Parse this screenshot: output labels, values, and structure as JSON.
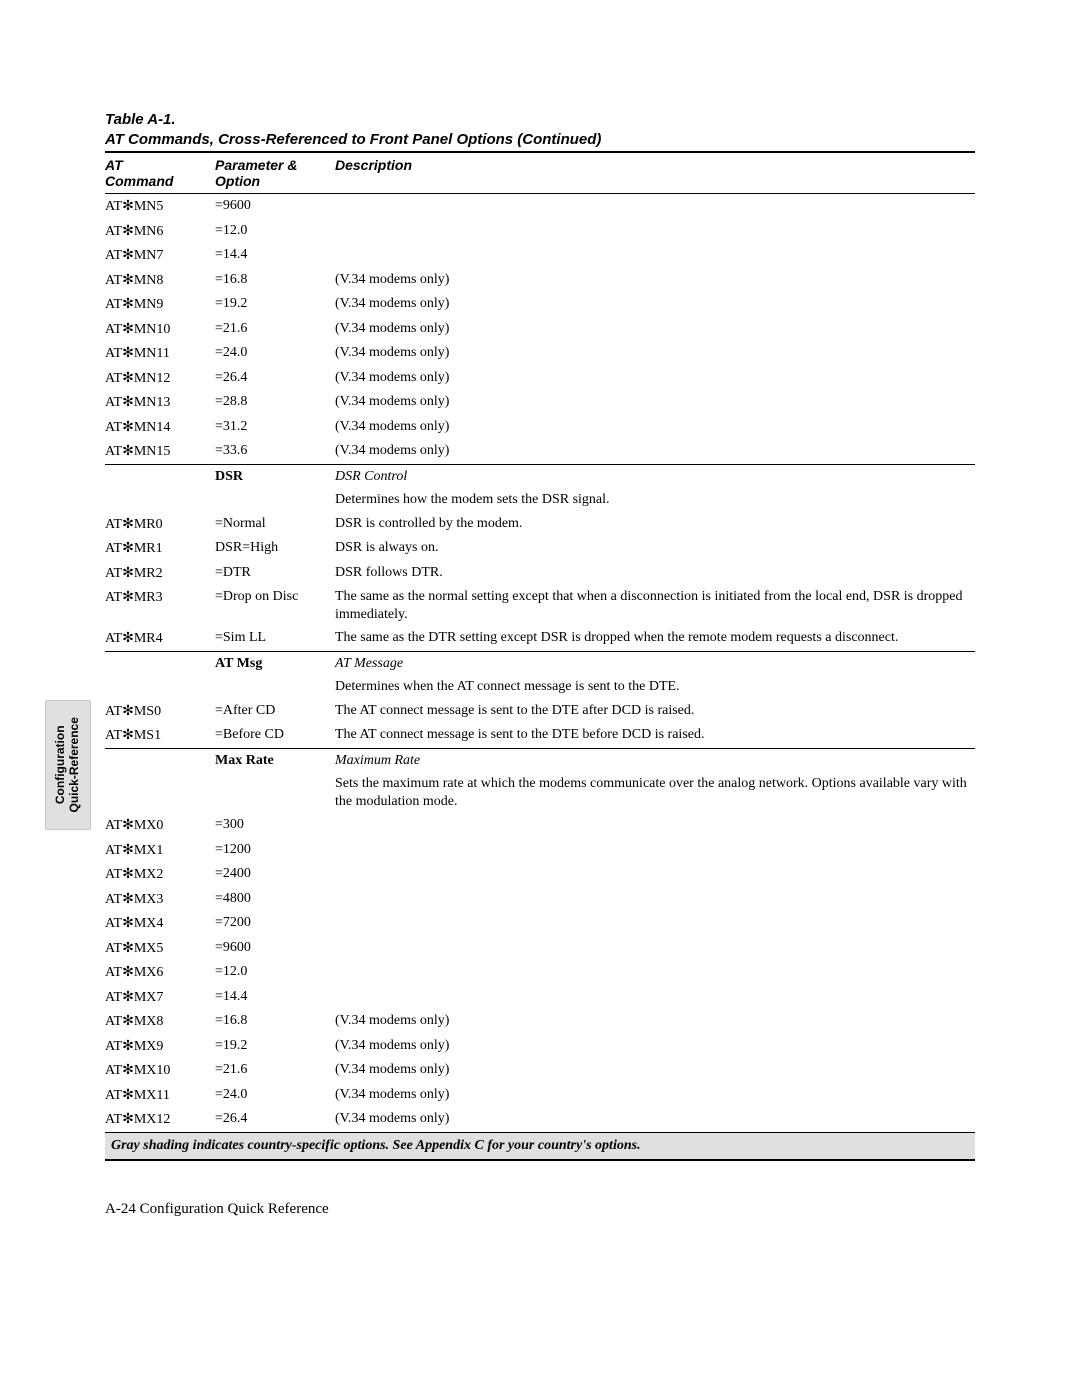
{
  "sideTab": {
    "line1": "Configuration",
    "line2": "Quick-Reference"
  },
  "caption": {
    "line1": "Table A-1.",
    "line2": "AT Commands, Cross-Referenced to Front Panel Options (Continued)"
  },
  "headers": {
    "cmd": "AT Command",
    "param": "Parameter & Option",
    "desc": "Description"
  },
  "symbol": "✻",
  "rows": [
    {
      "type": "data",
      "cmd_prefix": "AT",
      "cmd_suffix": "MN5",
      "param": "=9600",
      "desc": ""
    },
    {
      "type": "data",
      "cmd_prefix": "AT",
      "cmd_suffix": "MN6",
      "param": "=12.0",
      "desc": ""
    },
    {
      "type": "data",
      "cmd_prefix": "AT",
      "cmd_suffix": "MN7",
      "param": "=14.4",
      "desc": ""
    },
    {
      "type": "data",
      "cmd_prefix": "AT",
      "cmd_suffix": "MN8",
      "param": "=16.8",
      "desc": "(V.34 modems only)"
    },
    {
      "type": "data",
      "cmd_prefix": "AT",
      "cmd_suffix": "MN9",
      "param": "=19.2",
      "desc": "(V.34 modems only)"
    },
    {
      "type": "data",
      "cmd_prefix": "AT",
      "cmd_suffix": "MN10",
      "param": "=21.6",
      "desc": "(V.34 modems only)"
    },
    {
      "type": "data",
      "cmd_prefix": "AT",
      "cmd_suffix": "MN11",
      "param": "=24.0",
      "desc": "(V.34 modems only)"
    },
    {
      "type": "data",
      "cmd_prefix": "AT",
      "cmd_suffix": "MN12",
      "param": "=26.4",
      "desc": "(V.34 modems only)"
    },
    {
      "type": "data",
      "cmd_prefix": "AT",
      "cmd_suffix": "MN13",
      "param": "=28.8",
      "desc": "(V.34 modems only)"
    },
    {
      "type": "data",
      "cmd_prefix": "AT",
      "cmd_suffix": "MN14",
      "param": "=31.2",
      "desc": "(V.34 modems only)"
    },
    {
      "type": "data",
      "cmd_prefix": "AT",
      "cmd_suffix": "MN15",
      "param": "=33.6",
      "desc": "(V.34 modems only)"
    },
    {
      "type": "section",
      "param": "DSR",
      "desc": "DSR Control"
    },
    {
      "type": "note",
      "desc": "Determines how the modem sets the DSR signal."
    },
    {
      "type": "data",
      "cmd_prefix": "AT",
      "cmd_suffix": "MR0",
      "param": "=Normal",
      "desc": "DSR is controlled by the modem."
    },
    {
      "type": "data",
      "cmd_prefix": "AT",
      "cmd_suffix": "MR1",
      "param": "DSR=High",
      "desc": "DSR is always on."
    },
    {
      "type": "data",
      "cmd_prefix": "AT",
      "cmd_suffix": "MR2",
      "param": "=DTR",
      "desc": "DSR follows DTR."
    },
    {
      "type": "data",
      "cmd_prefix": "AT",
      "cmd_suffix": "MR3",
      "param": "=Drop on Disc",
      "desc": "The same as the normal setting except that when a disconnection is initiated from the local end, DSR is dropped immediately."
    },
    {
      "type": "data",
      "cmd_prefix": "AT",
      "cmd_suffix": "MR4",
      "param": "=Sim LL",
      "desc": "The same as the DTR setting except DSR is dropped when the remote modem requests a disconnect."
    },
    {
      "type": "section",
      "param": "AT Msg",
      "desc": "AT Message"
    },
    {
      "type": "note",
      "desc": "Determines when the AT connect message is sent to the DTE."
    },
    {
      "type": "data",
      "cmd_prefix": "AT",
      "cmd_suffix": "MS0",
      "param": "=After CD",
      "desc": "The AT connect message is sent to the DTE after DCD is raised."
    },
    {
      "type": "data",
      "cmd_prefix": "AT",
      "cmd_suffix": "MS1",
      "param": "=Before CD",
      "desc": "The AT connect message is sent to the DTE before DCD is raised."
    },
    {
      "type": "section",
      "param": "Max Rate",
      "desc": "Maximum Rate"
    },
    {
      "type": "note",
      "desc": "Sets the maximum rate at which the modems communicate over the analog network. Options available vary with the modulation mode."
    },
    {
      "type": "data",
      "cmd_prefix": "AT",
      "cmd_suffix": "MX0",
      "param": "=300",
      "desc": ""
    },
    {
      "type": "data",
      "cmd_prefix": "AT",
      "cmd_suffix": "MX1",
      "param": "=1200",
      "desc": ""
    },
    {
      "type": "data",
      "cmd_prefix": "AT",
      "cmd_suffix": "MX2",
      "param": "=2400",
      "desc": ""
    },
    {
      "type": "data",
      "cmd_prefix": "AT",
      "cmd_suffix": "MX3",
      "param": "=4800",
      "desc": ""
    },
    {
      "type": "data",
      "cmd_prefix": "AT",
      "cmd_suffix": "MX4",
      "param": "=7200",
      "desc": ""
    },
    {
      "type": "data",
      "cmd_prefix": "AT",
      "cmd_suffix": "MX5",
      "param": "=9600",
      "desc": ""
    },
    {
      "type": "data",
      "cmd_prefix": "AT",
      "cmd_suffix": "MX6",
      "param": "=12.0",
      "desc": ""
    },
    {
      "type": "data",
      "cmd_prefix": "AT",
      "cmd_suffix": "MX7",
      "param": "=14.4",
      "desc": ""
    },
    {
      "type": "data",
      "cmd_prefix": "AT",
      "cmd_suffix": "MX8",
      "param": "=16.8",
      "desc": "(V.34 modems only)"
    },
    {
      "type": "data",
      "cmd_prefix": "AT",
      "cmd_suffix": "MX9",
      "param": "=19.2",
      "desc": "(V.34 modems only)"
    },
    {
      "type": "data",
      "cmd_prefix": "AT",
      "cmd_suffix": "MX10",
      "param": "=21.6",
      "desc": "(V.34 modems only)"
    },
    {
      "type": "data",
      "cmd_prefix": "AT",
      "cmd_suffix": "MX11",
      "param": "=24.0",
      "desc": "(V.34 modems only)"
    },
    {
      "type": "data",
      "cmd_prefix": "AT",
      "cmd_suffix": "MX12",
      "param": "=26.4",
      "desc": "(V.34 modems only)"
    }
  ],
  "footerNote": "Gray shading indicates country-specific options. See Appendix C for your country's options.",
  "pageFooter": "A-24  Configuration Quick Reference"
}
